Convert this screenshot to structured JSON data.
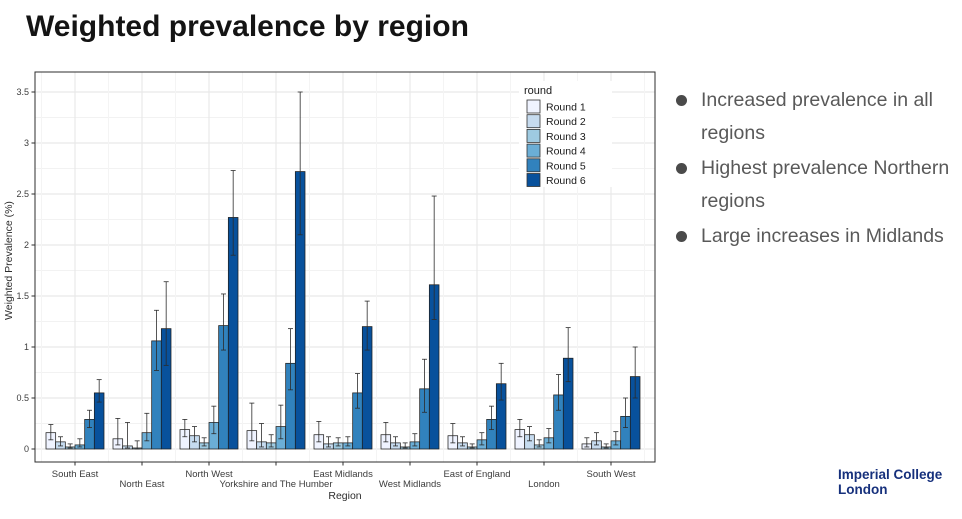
{
  "slide": {
    "title": "Weighted prevalence by region"
  },
  "bullets": {
    "items": [
      {
        "text": "Increased prevalence in all regions"
      },
      {
        "text": "Highest prevalence Northern regions"
      },
      {
        "text": "Large increases in Midlands"
      }
    ],
    "text_color": "#595959"
  },
  "logo": {
    "line1": "Imperial College",
    "line2": "London",
    "color": "#16307c"
  },
  "chart_data": {
    "type": "bar",
    "title": "",
    "xlabel": "Region",
    "ylabel": "Weighted Prevalence (%)",
    "ylim": [
      0,
      3.5
    ],
    "yticks": [
      0,
      0.5,
      1,
      1.5,
      2,
      2.5,
      3,
      3.5
    ],
    "ytick_labels": [
      "0",
      "0.5",
      "1",
      "1.5",
      "2",
      "2.5",
      "3",
      "3.5"
    ],
    "grid": true,
    "legend_title": "round",
    "legend_position": "top-right-inside",
    "bar_outline": "#1f1f1f",
    "error_bar_color": "#2b2b2b",
    "categories": [
      "South East",
      "North East",
      "North West",
      "Yorkshire and The Humber",
      "East Midlands",
      "West Midlands",
      "East of England",
      "London",
      "South West"
    ],
    "series": [
      {
        "name": "Round 1",
        "color": "#EFF3FF",
        "values": [
          0.16,
          0.1,
          0.19,
          0.18,
          0.14,
          0.14,
          0.13,
          0.19,
          0.05
        ],
        "ci_low": [
          0.09,
          0.04,
          0.12,
          0.08,
          0.07,
          0.07,
          0.06,
          0.12,
          0.02
        ],
        "ci_high": [
          0.24,
          0.3,
          0.29,
          0.45,
          0.27,
          0.26,
          0.25,
          0.29,
          0.11
        ]
      },
      {
        "name": "Round 2",
        "color": "#C6DBEF",
        "values": [
          0.07,
          0.03,
          0.13,
          0.07,
          0.05,
          0.06,
          0.06,
          0.14,
          0.08
        ],
        "ci_low": [
          0.03,
          0.01,
          0.07,
          0.02,
          0.02,
          0.03,
          0.03,
          0.08,
          0.04
        ],
        "ci_high": [
          0.12,
          0.26,
          0.22,
          0.25,
          0.12,
          0.12,
          0.12,
          0.22,
          0.16
        ]
      },
      {
        "name": "Round 3",
        "color": "#9ECAE1",
        "values": [
          0.02,
          0.01,
          0.06,
          0.06,
          0.06,
          0.02,
          0.02,
          0.04,
          0.02
        ],
        "ci_low": [
          0.01,
          0.0,
          0.03,
          0.02,
          0.03,
          0.01,
          0.01,
          0.02,
          0.01
        ],
        "ci_high": [
          0.05,
          0.08,
          0.11,
          0.14,
          0.11,
          0.06,
          0.05,
          0.09,
          0.05
        ]
      },
      {
        "name": "Round 4",
        "color": "#6BAED6",
        "values": [
          0.04,
          0.16,
          0.26,
          0.22,
          0.06,
          0.07,
          0.09,
          0.11,
          0.08
        ],
        "ci_low": [
          0.02,
          0.08,
          0.15,
          0.1,
          0.03,
          0.03,
          0.04,
          0.06,
          0.04
        ],
        "ci_high": [
          0.1,
          0.35,
          0.42,
          0.43,
          0.12,
          0.15,
          0.16,
          0.2,
          0.17
        ]
      },
      {
        "name": "Round 5",
        "color": "#3182BD",
        "values": [
          0.29,
          1.06,
          1.21,
          0.84,
          0.55,
          0.59,
          0.29,
          0.53,
          0.32
        ],
        "ci_low": [
          0.21,
          0.77,
          0.97,
          0.58,
          0.4,
          0.36,
          0.19,
          0.38,
          0.21
        ],
        "ci_high": [
          0.38,
          1.36,
          1.52,
          1.18,
          0.74,
          0.88,
          0.42,
          0.73,
          0.5
        ]
      },
      {
        "name": "Round 6",
        "color": "#08519C",
        "values": [
          0.55,
          1.18,
          2.27,
          2.72,
          1.2,
          1.61,
          0.64,
          0.89,
          0.71
        ],
        "ci_low": [
          0.46,
          0.82,
          1.9,
          2.1,
          0.97,
          1.27,
          0.48,
          0.66,
          0.5
        ],
        "ci_high": [
          0.68,
          1.64,
          2.73,
          3.5,
          1.45,
          2.48,
          0.84,
          1.19,
          1.0
        ]
      }
    ]
  }
}
